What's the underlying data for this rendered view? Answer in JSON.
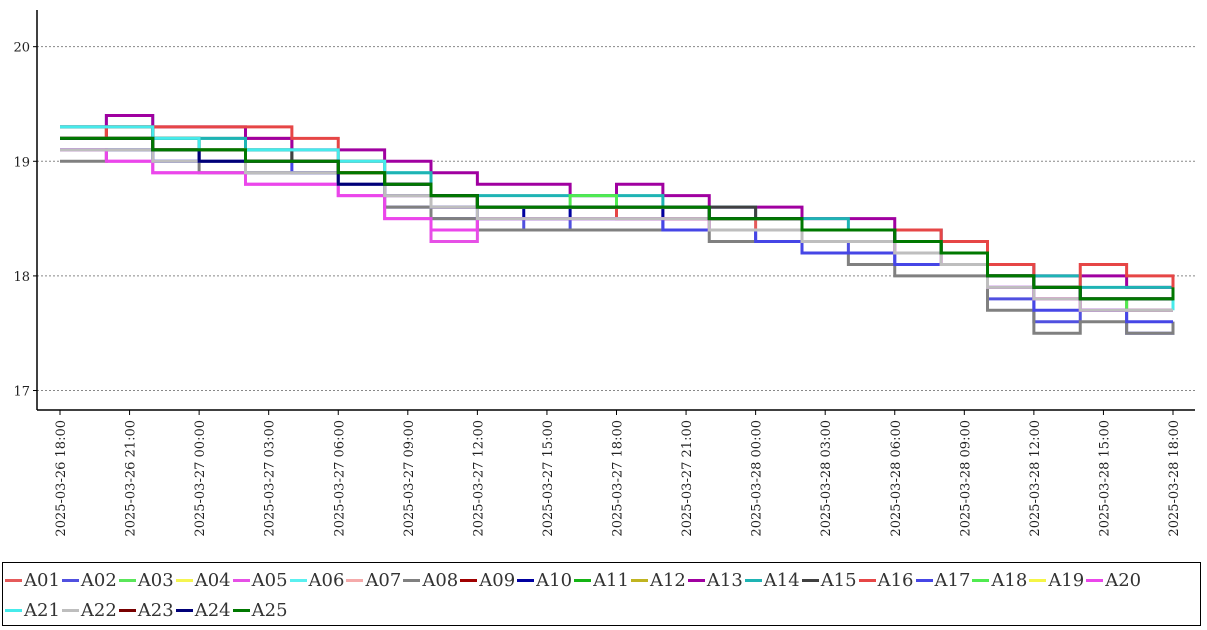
{
  "chart_data": {
    "type": "line",
    "title": "",
    "xlabel": "",
    "ylabel": "",
    "ylim": [
      16.83,
      20.32
    ],
    "yticks": [
      "17",
      "18",
      "19",
      "20"
    ],
    "grid": "horizontal dotted",
    "legend_position": "bottom",
    "x": [
      "2025-03-26 18:00",
      "2025-03-26 20:00",
      "2025-03-26 22:00",
      "2025-03-27 00:00",
      "2025-03-27 02:00",
      "2025-03-27 04:00",
      "2025-03-27 06:00",
      "2025-03-27 08:00",
      "2025-03-27 10:00",
      "2025-03-27 12:00",
      "2025-03-27 14:00",
      "2025-03-27 16:00",
      "2025-03-27 18:00",
      "2025-03-27 20:00",
      "2025-03-27 22:00",
      "2025-03-28 00:00",
      "2025-03-28 02:00",
      "2025-03-28 04:00",
      "2025-03-28 06:00",
      "2025-03-28 08:00",
      "2025-03-28 10:00",
      "2025-03-28 12:00",
      "2025-03-28 14:00",
      "2025-03-28 16:00",
      "2025-03-28 18:00"
    ],
    "xticks": [
      "2025-03-26 18:00",
      "2025-03-26 21:00",
      "2025-03-27 00:00",
      "2025-03-27 03:00",
      "2025-03-27 06:00",
      "2025-03-27 09:00",
      "2025-03-27 12:00",
      "2025-03-27 15:00",
      "2025-03-27 18:00",
      "2025-03-27 21:00",
      "2025-03-28 00:00",
      "2025-03-28 03:00",
      "2025-03-28 06:00",
      "2025-03-28 09:00",
      "2025-03-28 12:00",
      "2025-03-28 15:00",
      "2025-03-28 18:00"
    ],
    "series": [
      {
        "name": "A01",
        "color": "#e55a5a",
        "values": [
          19.2,
          19.2,
          19.2,
          19.2,
          19.2,
          19.0,
          18.9,
          18.7,
          18.6,
          18.6,
          18.6,
          18.6,
          18.6,
          18.5,
          18.5,
          18.4,
          18.4,
          18.4,
          18.4,
          18.3,
          18.0,
          17.8,
          17.8,
          17.7,
          17.7
        ]
      },
      {
        "name": "A02",
        "color": "#5050e0",
        "values": [
          19.1,
          19.1,
          19.0,
          19.0,
          18.9,
          18.9,
          18.8,
          18.6,
          18.5,
          18.5,
          18.4,
          18.5,
          18.5,
          18.4,
          18.4,
          18.3,
          18.3,
          18.2,
          18.1,
          18.1,
          17.8,
          17.6,
          17.7,
          17.5,
          17.6
        ]
      },
      {
        "name": "A03",
        "color": "#5ae65a",
        "values": [
          19.2,
          19.2,
          19.1,
          19.1,
          19.0,
          19.0,
          18.9,
          18.8,
          18.7,
          18.6,
          18.6,
          18.6,
          18.6,
          18.6,
          18.5,
          18.5,
          18.4,
          18.4,
          18.3,
          18.2,
          18.0,
          17.9,
          17.8,
          17.8,
          17.8
        ]
      },
      {
        "name": "A04",
        "color": "#f5f550",
        "values": [
          19.3,
          19.2,
          19.1,
          19.1,
          19.0,
          19.0,
          18.9,
          18.8,
          18.7,
          18.6,
          18.6,
          18.6,
          18.6,
          18.6,
          18.5,
          18.5,
          18.4,
          18.4,
          18.3,
          18.2,
          18.0,
          17.9,
          17.8,
          17.8,
          17.8
        ]
      },
      {
        "name": "A05",
        "color": "#e650e6",
        "values": [
          19.1,
          19.0,
          18.9,
          18.9,
          18.8,
          18.8,
          18.7,
          18.5,
          18.3,
          18.5,
          18.5,
          18.5,
          18.5,
          18.5,
          18.4,
          18.4,
          18.3,
          18.3,
          18.2,
          18.1,
          17.9,
          17.8,
          17.7,
          17.7,
          17.7
        ]
      },
      {
        "name": "A06",
        "color": "#5af0f0",
        "values": [
          19.3,
          19.4,
          19.2,
          19.2,
          19.1,
          19.1,
          19.0,
          18.9,
          18.7,
          18.6,
          18.6,
          18.6,
          18.6,
          18.6,
          18.5,
          18.5,
          18.4,
          18.4,
          18.3,
          18.2,
          18.0,
          17.9,
          17.8,
          17.8,
          17.8
        ]
      },
      {
        "name": "A07",
        "color": "#f5aaaa",
        "values": [
          19.2,
          19.2,
          19.1,
          19.1,
          19.0,
          19.0,
          18.9,
          18.8,
          18.7,
          18.6,
          18.6,
          18.6,
          18.6,
          18.6,
          18.5,
          18.5,
          18.4,
          18.4,
          18.3,
          18.2,
          18.0,
          17.9,
          17.8,
          17.8,
          17.8
        ]
      },
      {
        "name": "A08",
        "color": "#808080",
        "values": [
          19.0,
          19.1,
          19.1,
          18.9,
          18.9,
          18.9,
          18.8,
          18.6,
          18.5,
          18.4,
          18.4,
          18.4,
          18.4,
          18.4,
          18.3,
          18.3,
          18.2,
          18.1,
          18.0,
          18.0,
          17.7,
          17.5,
          17.6,
          17.5,
          17.6
        ]
      },
      {
        "name": "A09",
        "color": "#a00000",
        "values": [
          19.2,
          19.3,
          19.1,
          19.1,
          19.0,
          19.0,
          18.9,
          18.8,
          18.7,
          18.6,
          18.6,
          18.6,
          18.6,
          18.6,
          18.5,
          18.5,
          18.4,
          18.4,
          18.3,
          18.2,
          18.0,
          17.9,
          17.8,
          17.8,
          17.8
        ]
      },
      {
        "name": "A10",
        "color": "#0000a0",
        "values": [
          19.2,
          19.2,
          19.1,
          19.0,
          19.0,
          19.0,
          18.9,
          18.8,
          18.6,
          18.6,
          18.5,
          18.6,
          18.6,
          18.5,
          18.5,
          18.5,
          18.4,
          18.4,
          18.3,
          18.2,
          18.0,
          17.9,
          17.8,
          17.8,
          17.8
        ]
      },
      {
        "name": "A11",
        "color": "#14b414",
        "values": [
          19.2,
          19.2,
          19.2,
          19.1,
          19.0,
          19.0,
          18.9,
          18.8,
          18.7,
          18.6,
          18.6,
          18.6,
          18.6,
          18.6,
          18.5,
          18.5,
          18.4,
          18.4,
          18.3,
          18.2,
          18.0,
          17.9,
          17.8,
          17.8,
          17.8
        ]
      },
      {
        "name": "A12",
        "color": "#c0b420",
        "values": [
          19.2,
          19.2,
          19.1,
          19.1,
          19.0,
          19.0,
          18.9,
          18.8,
          18.7,
          18.6,
          18.6,
          18.6,
          18.6,
          18.6,
          18.5,
          18.5,
          18.4,
          18.4,
          18.3,
          18.2,
          18.0,
          17.9,
          17.8,
          17.8,
          17.8
        ]
      },
      {
        "name": "A13",
        "color": "#a000a0",
        "values": [
          19.3,
          19.4,
          19.3,
          19.3,
          19.2,
          19.1,
          19.1,
          19.0,
          18.9,
          18.8,
          18.8,
          18.7,
          18.8,
          18.7,
          18.6,
          18.6,
          18.5,
          18.5,
          18.4,
          18.3,
          18.1,
          18.0,
          18.0,
          17.9,
          17.9
        ]
      },
      {
        "name": "A14",
        "color": "#1eb4b4",
        "values": [
          19.2,
          19.2,
          19.2,
          19.2,
          19.1,
          19.0,
          19.0,
          18.9,
          18.7,
          18.7,
          18.7,
          18.7,
          18.7,
          18.6,
          18.6,
          18.5,
          18.5,
          18.4,
          18.4,
          18.3,
          18.1,
          18.0,
          17.9,
          17.9,
          17.8
        ]
      },
      {
        "name": "A15",
        "color": "#404040",
        "values": [
          19.3,
          19.3,
          19.2,
          19.1,
          19.1,
          19.0,
          18.9,
          18.8,
          18.7,
          18.6,
          18.6,
          18.6,
          18.6,
          18.6,
          18.6,
          18.5,
          18.4,
          18.4,
          18.3,
          18.2,
          18.0,
          17.9,
          17.8,
          17.8,
          17.8
        ]
      },
      {
        "name": "A16",
        "color": "#e64646",
        "values": [
          19.2,
          19.3,
          19.3,
          19.3,
          19.3,
          19.2,
          19.0,
          18.8,
          18.7,
          18.6,
          18.6,
          18.6,
          18.5,
          18.5,
          18.5,
          18.5,
          18.4,
          18.4,
          18.4,
          18.3,
          18.1,
          17.9,
          18.1,
          18.0,
          17.8
        ]
      },
      {
        "name": "A17",
        "color": "#4646e6",
        "values": [
          19.1,
          19.1,
          19.0,
          19.0,
          19.0,
          18.9,
          18.8,
          18.7,
          18.6,
          18.5,
          18.5,
          18.5,
          18.5,
          18.4,
          18.4,
          18.3,
          18.2,
          18.2,
          18.1,
          18.1,
          17.9,
          17.7,
          17.7,
          17.6,
          17.6
        ]
      },
      {
        "name": "A18",
        "color": "#50eb50",
        "values": [
          19.2,
          19.2,
          19.1,
          19.1,
          19.0,
          19.0,
          18.9,
          18.8,
          18.7,
          18.6,
          18.6,
          18.7,
          18.6,
          18.6,
          18.5,
          18.5,
          18.4,
          18.4,
          18.3,
          18.2,
          18.0,
          17.9,
          17.8,
          17.7,
          17.7
        ]
      },
      {
        "name": "A19",
        "color": "#f5f546",
        "values": [
          19.2,
          19.2,
          19.1,
          19.1,
          19.0,
          19.0,
          18.9,
          18.8,
          18.7,
          18.6,
          18.6,
          18.6,
          18.6,
          18.6,
          18.5,
          18.5,
          18.4,
          18.4,
          18.3,
          18.2,
          18.0,
          17.9,
          17.8,
          17.8,
          17.8
        ]
      },
      {
        "name": "A20",
        "color": "#eb46eb",
        "values": [
          19.1,
          19.0,
          18.9,
          18.9,
          18.8,
          18.8,
          18.7,
          18.5,
          18.4,
          18.5,
          18.5,
          18.5,
          18.5,
          18.5,
          18.4,
          18.4,
          18.3,
          18.3,
          18.2,
          18.1,
          17.9,
          17.8,
          17.7,
          17.7,
          17.7
        ]
      },
      {
        "name": "A21",
        "color": "#46ebeb",
        "values": [
          19.3,
          19.3,
          19.2,
          19.1,
          19.1,
          19.1,
          19.0,
          18.8,
          18.7,
          18.6,
          18.6,
          18.6,
          18.6,
          18.6,
          18.5,
          18.5,
          18.4,
          18.4,
          18.3,
          18.2,
          18.0,
          17.9,
          17.8,
          17.8,
          17.7
        ]
      },
      {
        "name": "A22",
        "color": "#bebebe",
        "values": [
          19.1,
          19.1,
          19.0,
          19.0,
          18.9,
          18.9,
          18.8,
          18.7,
          18.6,
          18.5,
          18.5,
          18.5,
          18.5,
          18.5,
          18.4,
          18.4,
          18.3,
          18.3,
          18.2,
          18.1,
          17.9,
          17.8,
          17.7,
          17.7,
          17.7
        ]
      },
      {
        "name": "A23",
        "color": "#780000",
        "values": [
          19.2,
          19.2,
          19.1,
          19.1,
          19.0,
          19.0,
          18.9,
          18.8,
          18.7,
          18.6,
          18.6,
          18.6,
          18.6,
          18.6,
          18.5,
          18.5,
          18.4,
          18.4,
          18.3,
          18.2,
          18.0,
          17.9,
          17.8,
          17.8,
          17.8
        ]
      },
      {
        "name": "A24",
        "color": "#000078",
        "values": [
          19.2,
          19.2,
          19.1,
          19.0,
          19.0,
          19.0,
          18.8,
          18.8,
          18.7,
          18.6,
          18.6,
          18.6,
          18.6,
          18.6,
          18.5,
          18.5,
          18.4,
          18.4,
          18.3,
          18.2,
          18.0,
          17.9,
          17.8,
          17.8,
          17.8
        ]
      },
      {
        "name": "A25",
        "color": "#007800",
        "values": [
          19.2,
          19.2,
          19.1,
          19.1,
          19.0,
          19.0,
          18.9,
          18.8,
          18.7,
          18.6,
          18.6,
          18.6,
          18.6,
          18.6,
          18.5,
          18.5,
          18.4,
          18.4,
          18.3,
          18.2,
          18.0,
          17.9,
          17.8,
          17.8,
          17.9
        ]
      }
    ]
  }
}
